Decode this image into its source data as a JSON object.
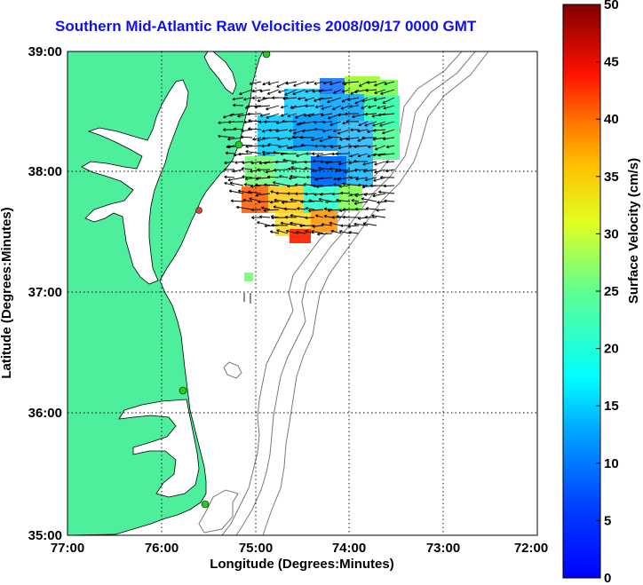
{
  "title": "Southern Mid-Atlantic Raw Velocities 2008/09/17 0000 GMT",
  "map": {
    "x_label": "Longitude (Degrees:Minutes)",
    "y_label": "Latitude (Degrees:Minutes)",
    "x_ticks": [
      "77:00",
      "76:00",
      "75:00",
      "74:00",
      "73:00",
      "72:00"
    ],
    "y_ticks": [
      "39:00",
      "38:00",
      "37:00",
      "36:00",
      "35:00"
    ],
    "land_color": "#4def9c",
    "coast_color": "#000000",
    "bathymetry_color": "#7a7a7a",
    "station_color": "#22cc22",
    "station_alt_color": "#e04040",
    "arrow_color": "#000000"
  },
  "colorbar": {
    "label": "Surface Velocity (cm/s)",
    "ticks": [
      "0",
      "5",
      "10",
      "15",
      "20",
      "25",
      "30",
      "35",
      "40",
      "45",
      "50"
    ],
    "min": 0,
    "max": 50,
    "colormap": "jet"
  }
}
